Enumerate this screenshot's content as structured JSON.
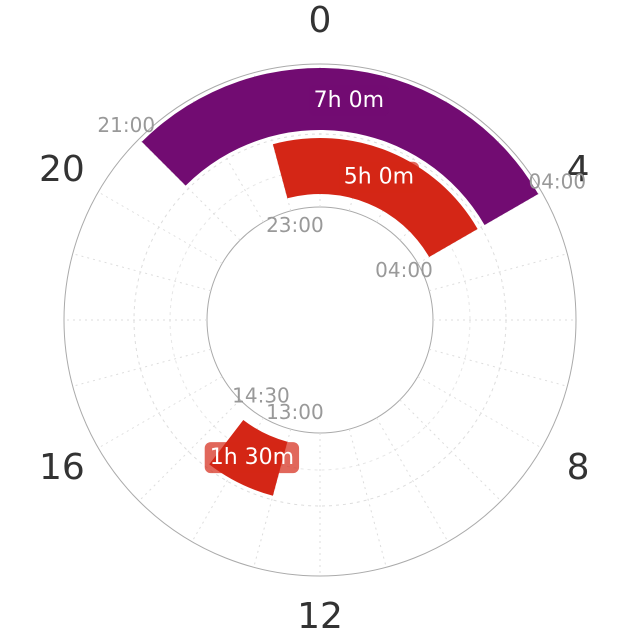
{
  "chart_data": {
    "type": "radial",
    "xlim": [
      0,
      24
    ],
    "xticks": [
      0,
      4,
      8,
      12,
      16,
      20
    ],
    "segments": [
      {
        "start": {
          "value": 21,
          "label": "21:00"
        },
        "end": {
          "value": 4,
          "label": "04:00"
        },
        "duration": "7h 0m",
        "color": "#720c72",
        "ring": "outer"
      },
      {
        "start": {
          "value": 23,
          "label": "23:00"
        },
        "end": {
          "value": 4,
          "label": "04:00"
        },
        "duration": "5h 0m",
        "color": "#d42616",
        "ring": "inner"
      },
      {
        "start": {
          "value": 13,
          "label": "13:00"
        },
        "end": {
          "value": 14.5,
          "label": "14:30"
        },
        "duration": "1h 30m",
        "color": "#d42616",
        "ring": "inner"
      }
    ]
  }
}
